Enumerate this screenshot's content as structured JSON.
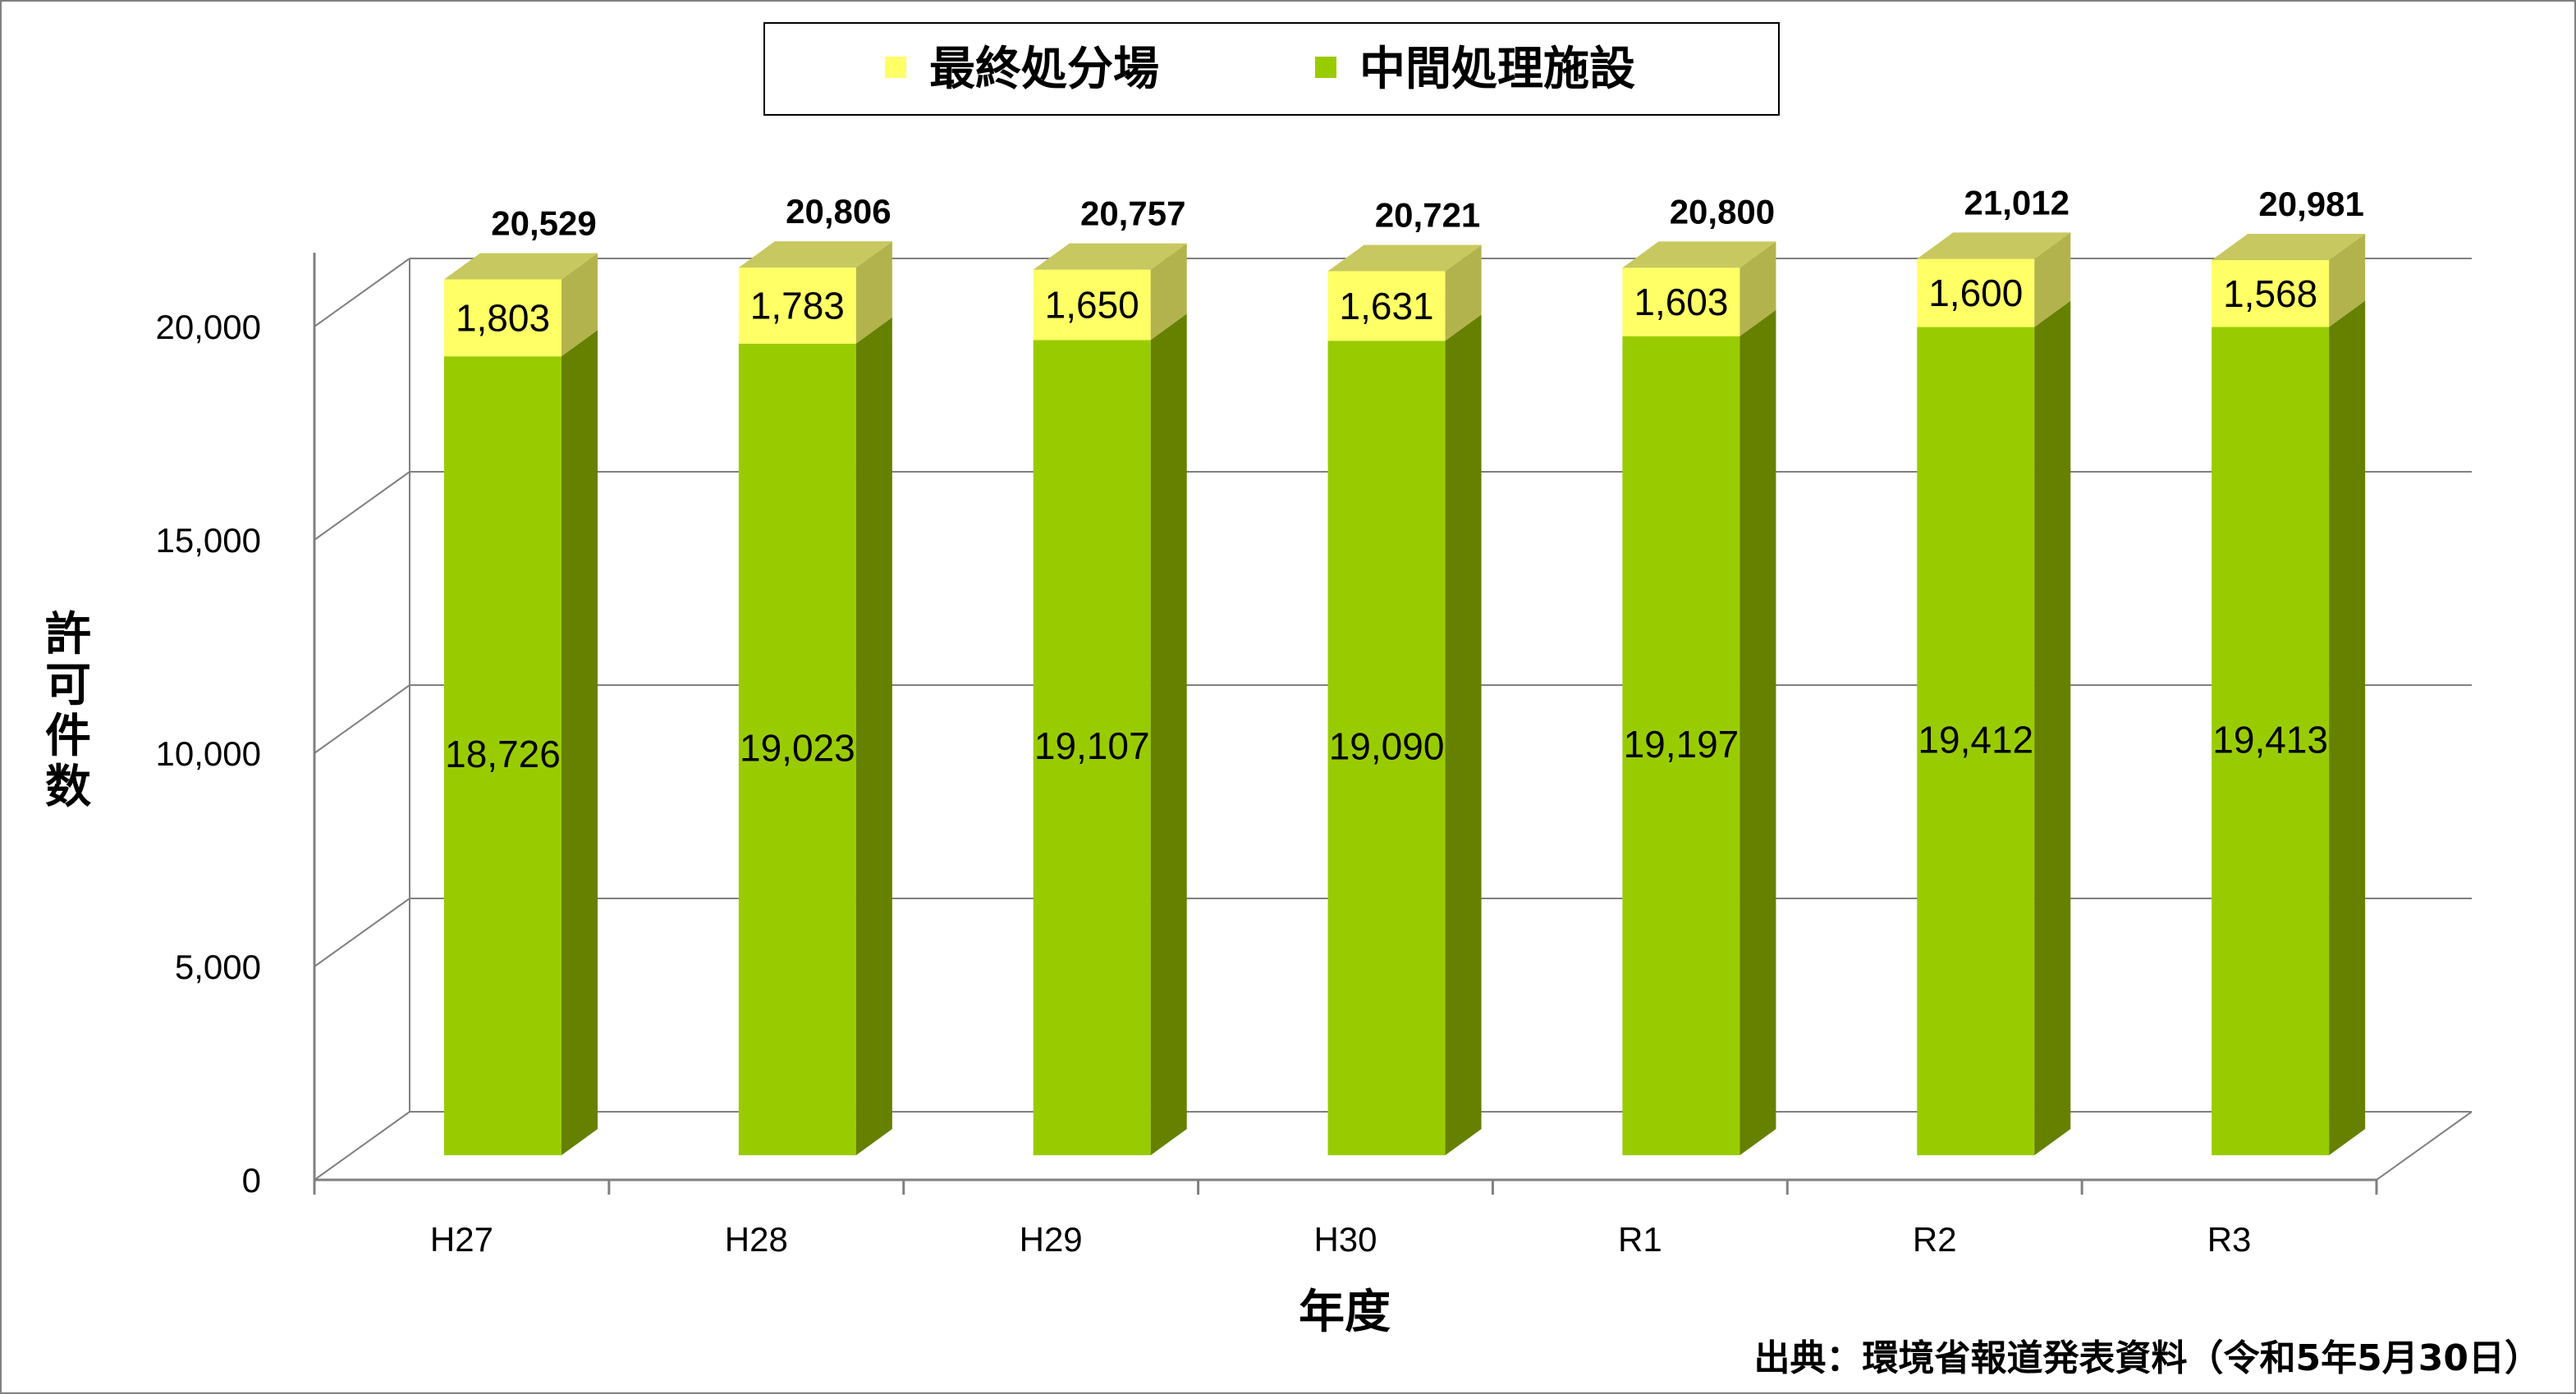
{
  "chart_data": {
    "type": "bar",
    "stacked": true,
    "three_d": true,
    "categories": [
      "H27",
      "H28",
      "H29",
      "H30",
      "R1",
      "R2",
      "R3"
    ],
    "series": [
      {
        "name": "中間処理施設",
        "values": [
          18726,
          19023,
          19107,
          19090,
          19197,
          19412,
          19413
        ],
        "color": "#99cc00",
        "side_color": "#668000"
      },
      {
        "name": "最終処分場",
        "values": [
          1803,
          1783,
          1650,
          1631,
          1603,
          1600,
          1568
        ],
        "color": "#ffff66",
        "side_color": "#b3b34d"
      }
    ],
    "totals": [
      20529,
      20806,
      20757,
      20721,
      20800,
      21012,
      20981
    ],
    "total_labels": [
      "20,529",
      "20,806",
      "20,757",
      "20,721",
      "20,800",
      "21,012",
      "20,981"
    ],
    "segment_labels": {
      "中間処理施設": [
        "18,726",
        "19,023",
        "19,107",
        "19,090",
        "19,197",
        "19,412",
        "19,413"
      ],
      "最終処分場": [
        "1,803",
        "1,783",
        "1,650",
        "1,631",
        "1,603",
        "1,600",
        "1,568"
      ]
    },
    "yticks": [
      0,
      5000,
      10000,
      15000,
      20000
    ],
    "ytick_labels": [
      "0",
      "5,000",
      "10,000",
      "15,000",
      "20,000"
    ],
    "ylim": [
      0,
      20000
    ],
    "ylabel": "許可件数",
    "xlabel": "年度",
    "legend": {
      "position": "top",
      "order": [
        "最終処分場",
        "中間処理施設"
      ]
    },
    "grid": true
  },
  "source_note": "出典：環境省報道発表資料（令和5年5月30日）",
  "colors": {
    "grid": "#808080",
    "border": "#808080"
  }
}
